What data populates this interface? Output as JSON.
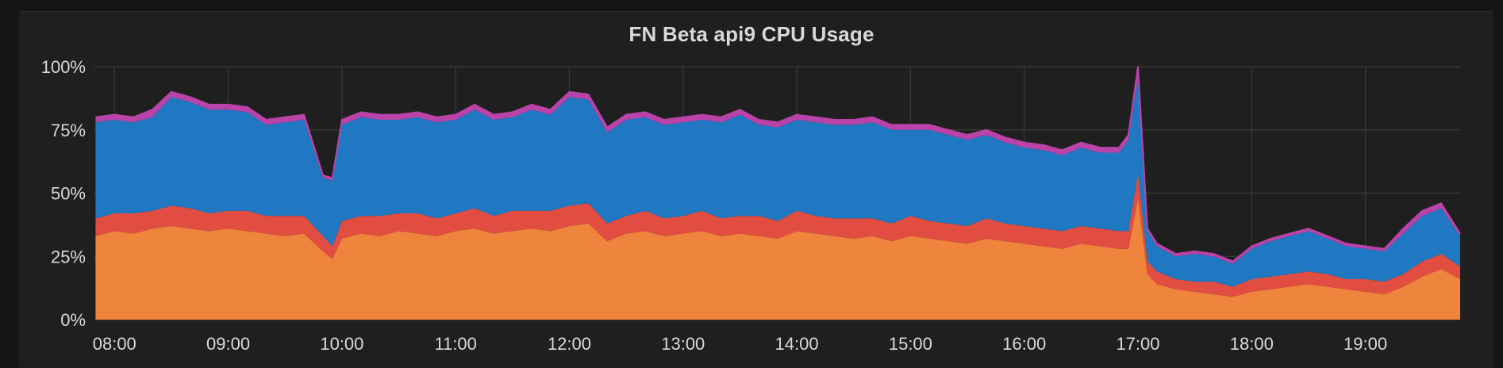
{
  "chart_data": {
    "type": "area",
    "stacked": true,
    "title": "FN Beta api9 CPU Usage",
    "xlabel": "",
    "ylabel": "",
    "ylim": [
      0,
      100
    ],
    "y_ticks": [
      "0%",
      "25%",
      "50%",
      "75%",
      "100%"
    ],
    "x_ticks": [
      "08:00",
      "09:00",
      "10:00",
      "11:00",
      "12:00",
      "13:00",
      "14:00",
      "15:00",
      "16:00",
      "17:00",
      "18:00",
      "19:00"
    ],
    "x_range": [
      "07:49",
      "19:50"
    ],
    "grid": true,
    "legend": "none",
    "colors": [
      "#ef843c",
      "#e24d42",
      "#1f78c1",
      "#ba43a9"
    ],
    "series": [
      {
        "x": [
          "07:50",
          "08:00",
          "08:10",
          "08:20",
          "08:30",
          "08:40",
          "08:50",
          "09:00",
          "09:10",
          "09:20",
          "09:30",
          "09:40",
          "09:50",
          "09:55",
          "10:00",
          "10:10",
          "10:20",
          "10:30",
          "10:40",
          "10:50",
          "11:00",
          "11:10",
          "11:20",
          "11:30",
          "11:40",
          "11:50",
          "12:00",
          "12:10",
          "12:20",
          "12:30",
          "12:40",
          "12:50",
          "13:00",
          "13:10",
          "13:20",
          "13:30",
          "13:40",
          "13:50",
          "14:00",
          "14:10",
          "14:20",
          "14:30",
          "14:40",
          "14:50",
          "15:00",
          "15:10",
          "15:20",
          "15:30",
          "15:40",
          "15:50",
          "16:00",
          "16:10",
          "16:20",
          "16:30",
          "16:40",
          "16:50",
          "16:55",
          "17:00",
          "17:05",
          "17:10",
          "17:20",
          "17:30",
          "17:40",
          "17:50",
          "18:00",
          "18:10",
          "18:20",
          "18:30",
          "18:40",
          "18:50",
          "19:00",
          "19:10",
          "19:20",
          "19:30",
          "19:40",
          "19:50"
        ],
        "values": [
          33,
          35,
          34,
          36,
          37,
          36,
          35,
          36,
          35,
          34,
          33,
          34,
          27,
          24,
          32,
          34,
          33,
          35,
          34,
          33,
          35,
          36,
          34,
          35,
          36,
          35,
          37,
          38,
          31,
          34,
          35,
          33,
          34,
          35,
          33,
          34,
          33,
          32,
          35,
          34,
          33,
          32,
          33,
          31,
          33,
          32,
          31,
          30,
          32,
          31,
          30,
          29,
          28,
          30,
          29,
          28,
          28,
          48,
          18,
          14,
          12,
          11,
          10,
          9,
          11,
          12,
          13,
          14,
          13,
          12,
          11,
          10,
          13,
          17,
          20,
          16
        ]
      },
      {
        "values": [
          7,
          7,
          8,
          7,
          8,
          8,
          7,
          7,
          8,
          7,
          8,
          7,
          6,
          5,
          7,
          7,
          8,
          7,
          8,
          7,
          7,
          8,
          7,
          8,
          7,
          8,
          8,
          8,
          7,
          7,
          8,
          7,
          7,
          8,
          7,
          7,
          8,
          7,
          8,
          7,
          7,
          8,
          7,
          7,
          8,
          7,
          7,
          7,
          8,
          7,
          7,
          7,
          7,
          7,
          7,
          7,
          7,
          10,
          5,
          5,
          4,
          4,
          5,
          4,
          5,
          5,
          5,
          5,
          5,
          4,
          5,
          5,
          5,
          6,
          6,
          5
        ]
      },
      {
        "values": [
          38,
          37,
          36,
          37,
          43,
          42,
          41,
          40,
          39,
          36,
          37,
          38,
          23,
          26,
          38,
          39,
          38,
          37,
          38,
          38,
          37,
          39,
          38,
          37,
          40,
          38,
          43,
          41,
          36,
          38,
          37,
          37,
          37,
          36,
          38,
          40,
          36,
          37,
          36,
          37,
          37,
          37,
          38,
          37,
          34,
          36,
          35,
          34,
          33,
          32,
          31,
          31,
          30,
          31,
          30,
          31,
          36,
          38,
          12,
          10,
          9,
          11,
          10,
          9,
          12,
          14,
          15,
          16,
          14,
          13,
          12,
          12,
          16,
          18,
          18,
          12
        ]
      },
      {
        "values": [
          2,
          2,
          2,
          3,
          2,
          2,
          2,
          2,
          2,
          2,
          2,
          2,
          1,
          1,
          2,
          2,
          2,
          2,
          2,
          2,
          2,
          2,
          2,
          2,
          2,
          2,
          2,
          2,
          2,
          2,
          2,
          2,
          2,
          2,
          2,
          2,
          2,
          2,
          2,
          2,
          2,
          2,
          2,
          2,
          2,
          2,
          2,
          2,
          2,
          2,
          2,
          2,
          2,
          2,
          2,
          2,
          2,
          4,
          1,
          1,
          1,
          1,
          1,
          1,
          1,
          1,
          1,
          1,
          1,
          1,
          1,
          1,
          2,
          2,
          2,
          1
        ]
      }
    ]
  }
}
